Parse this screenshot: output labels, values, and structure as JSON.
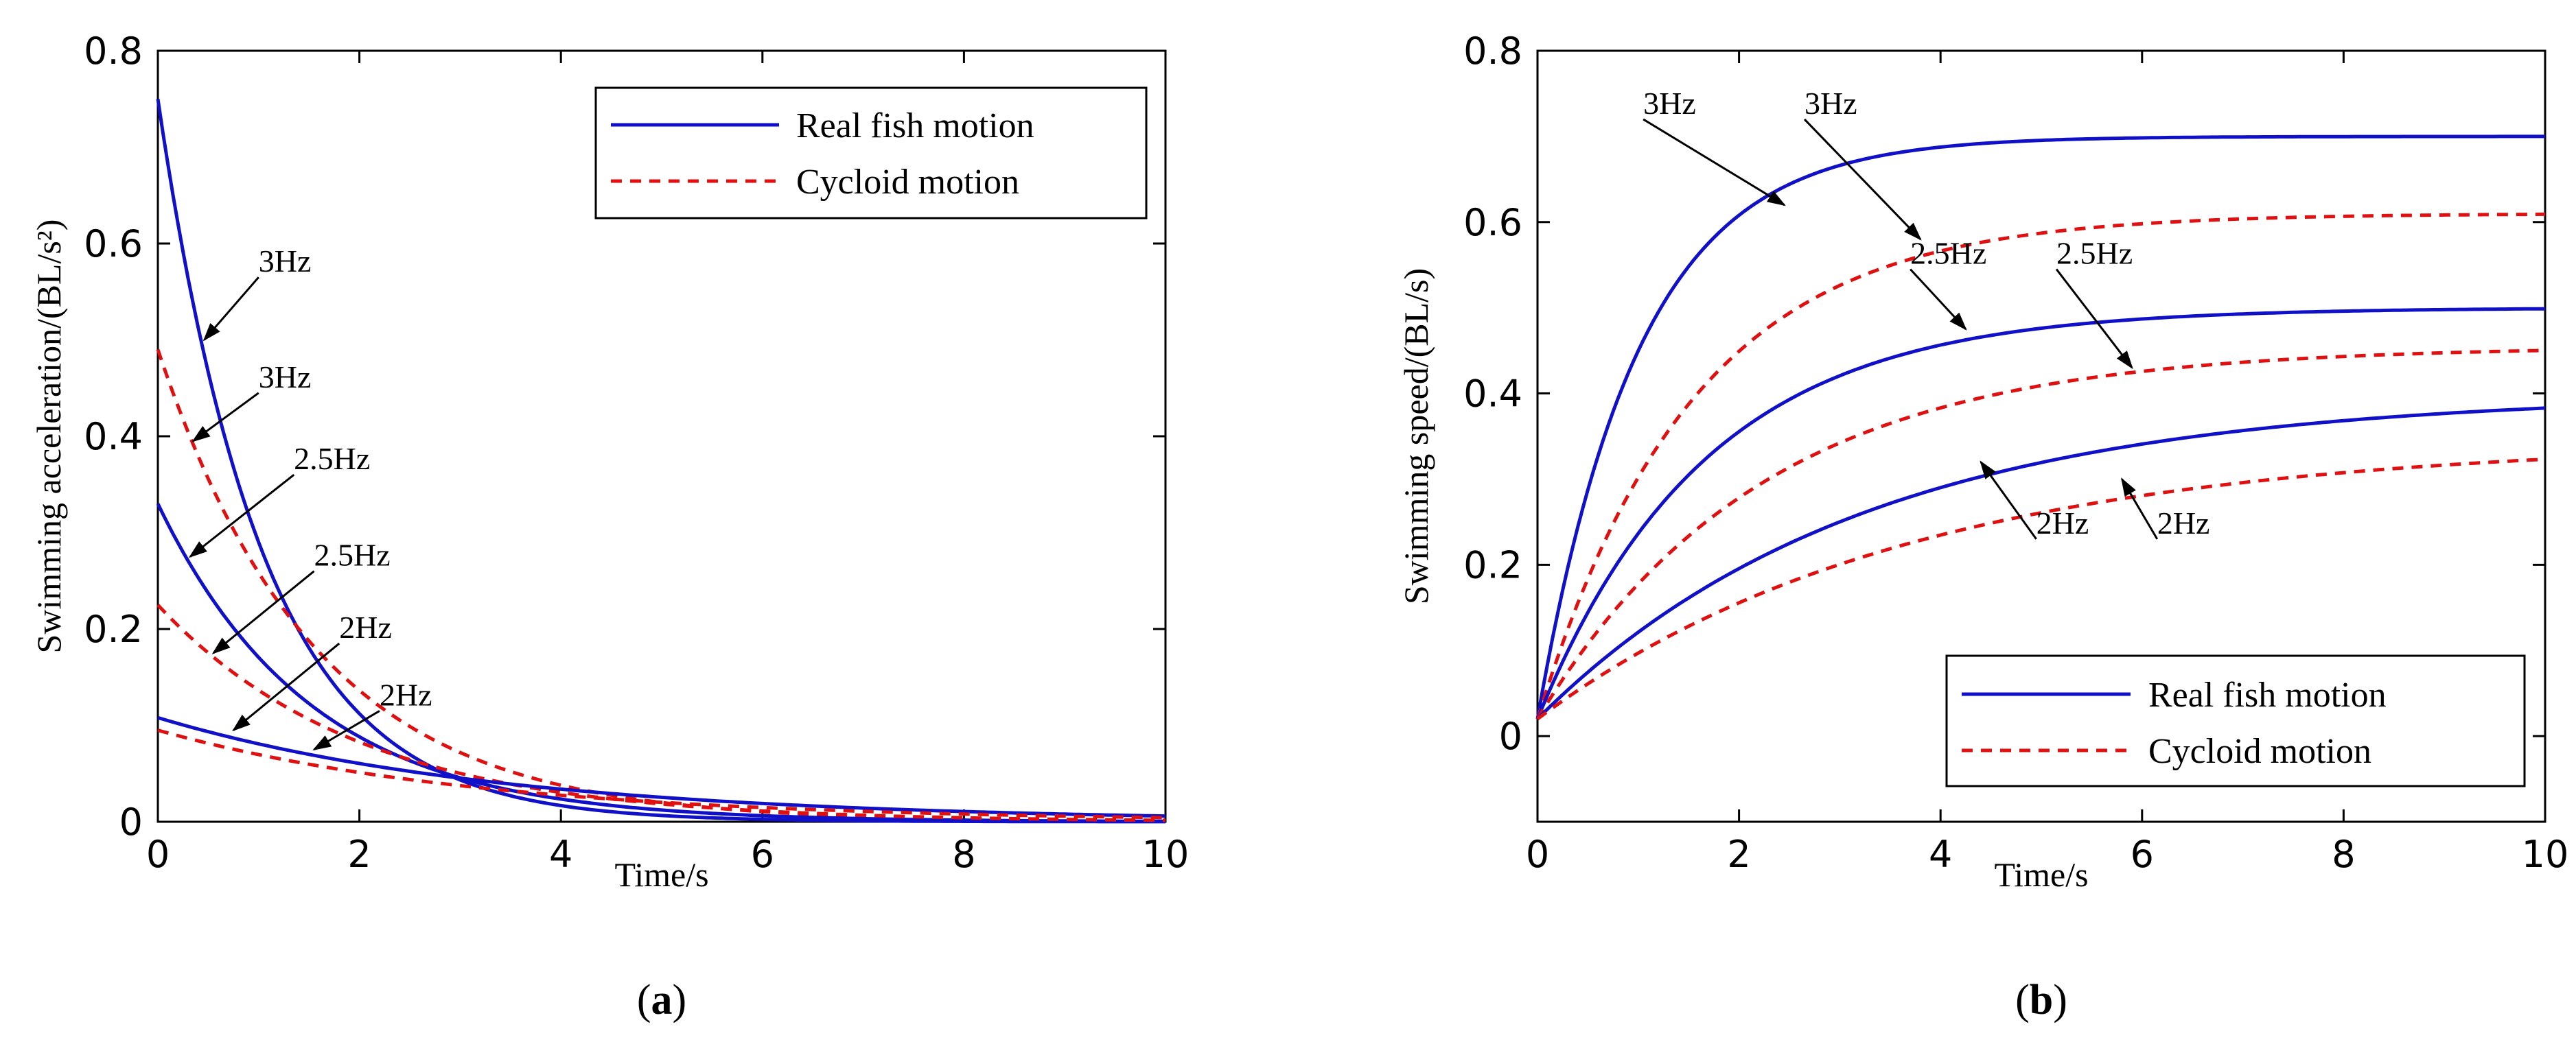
{
  "colors": {
    "real": "#1010c8",
    "cycloid": "#e01010",
    "axis": "#000000",
    "arrow": "#000000"
  },
  "chart_data": [
    {
      "type": "line",
      "caption_open": "(",
      "caption_letter": "a",
      "caption_close": ")",
      "xlabel": "Time/s",
      "ylabel": "Swimming acceleration/(BL/s²)",
      "xlim": [
        0,
        10
      ],
      "ylim": [
        0,
        0.8
      ],
      "xticks": [
        0,
        2,
        4,
        6,
        8,
        10
      ],
      "yticks": [
        0,
        0.2,
        0.4,
        0.6,
        0.8
      ],
      "legend": {
        "position": "top-right",
        "real": "Real fish motion",
        "cycloid": "Cycloid motion"
      },
      "series": [
        {
          "name": "Real fish motion 3Hz",
          "style": "real",
          "func": "exp",
          "a": 0.75,
          "k": 0.95,
          "c": 0
        },
        {
          "name": "Cycloid motion 3Hz",
          "style": "cycloid",
          "func": "exp",
          "a": 0.49,
          "k": 0.64,
          "c": 0
        },
        {
          "name": "Real fish motion 2.5Hz",
          "style": "real",
          "func": "exp",
          "a": 0.33,
          "k": 0.66,
          "c": 0
        },
        {
          "name": "Cycloid motion 2.5Hz",
          "style": "cycloid",
          "func": "exp",
          "a": 0.225,
          "k": 0.5,
          "c": 0
        },
        {
          "name": "Real fish motion 2Hz",
          "style": "real",
          "func": "exp",
          "a": 0.108,
          "k": 0.29,
          "c": 0
        },
        {
          "name": "Cycloid motion 2Hz",
          "style": "cycloid",
          "func": "exp",
          "a": 0.095,
          "k": 0.31,
          "c": 0
        }
      ],
      "annotations": [
        {
          "text": "3Hz",
          "x": 1.0,
          "y": 0.565,
          "ax": 0.46,
          "ay": 0.5
        },
        {
          "text": "3Hz",
          "x": 1.0,
          "y": 0.445,
          "ax": 0.35,
          "ay": 0.395
        },
        {
          "text": "2.5Hz",
          "x": 1.35,
          "y": 0.36,
          "ax": 0.32,
          "ay": 0.275
        },
        {
          "text": "2.5Hz",
          "x": 1.55,
          "y": 0.26,
          "ax": 0.55,
          "ay": 0.175
        },
        {
          "text": "2Hz",
          "x": 1.8,
          "y": 0.185,
          "ax": 0.75,
          "ay": 0.095
        },
        {
          "text": "2Hz",
          "x": 2.2,
          "y": 0.115,
          "ax": 1.55,
          "ay": 0.075
        }
      ]
    },
    {
      "type": "line",
      "caption_open": "(",
      "caption_letter": "b",
      "caption_close": ")",
      "xlabel": "Time/s",
      "ylabel": "Swimming speed/(BL/s)",
      "xlim": [
        0,
        10
      ],
      "ylim": [
        -0.1,
        0.8
      ],
      "xticks": [
        0,
        2,
        4,
        6,
        8,
        10
      ],
      "yticks": [
        0,
        0.2,
        0.4,
        0.6,
        0.8
      ],
      "legend": {
        "position": "bottom-right",
        "real": "Real fish motion",
        "cycloid": "Cycloid motion"
      },
      "series": [
        {
          "name": "Real fish motion 3Hz",
          "style": "real",
          "func": "rise",
          "a": 0.7,
          "k": 1.0,
          "c": 0.02
        },
        {
          "name": "Cycloid motion 3Hz",
          "style": "cycloid",
          "func": "rise",
          "a": 0.61,
          "k": 0.65,
          "c": 0.02
        },
        {
          "name": "Real fish motion 2.5Hz",
          "style": "real",
          "func": "rise",
          "a": 0.5,
          "k": 0.6,
          "c": 0.02
        },
        {
          "name": "Cycloid motion 2.5Hz",
          "style": "cycloid",
          "func": "rise",
          "a": 0.455,
          "k": 0.45,
          "c": 0.02
        },
        {
          "name": "Real fish motion 2Hz",
          "style": "real",
          "func": "rise",
          "a": 0.4,
          "k": 0.31,
          "c": 0.02
        },
        {
          "name": "Cycloid motion 2Hz",
          "style": "cycloid",
          "func": "rise",
          "a": 0.345,
          "k": 0.27,
          "c": 0.02
        }
      ],
      "annotations": [
        {
          "text": "3Hz",
          "x": 1.05,
          "y": 0.72,
          "ax": 2.45,
          "ay": 0.62
        },
        {
          "text": "3Hz",
          "x": 2.65,
          "y": 0.72,
          "ax": 3.8,
          "ay": 0.58
        },
        {
          "text": "2.5Hz",
          "x": 3.7,
          "y": 0.545,
          "ax": 4.25,
          "ay": 0.475
        },
        {
          "text": "2.5Hz",
          "x": 5.15,
          "y": 0.545,
          "ax": 5.9,
          "ay": 0.43
        },
        {
          "text": "2Hz",
          "x": 4.95,
          "y": 0.23,
          "ax": 4.4,
          "ay": 0.32
        },
        {
          "text": "2Hz",
          "x": 6.15,
          "y": 0.23,
          "ax": 5.8,
          "ay": 0.3
        }
      ]
    }
  ]
}
